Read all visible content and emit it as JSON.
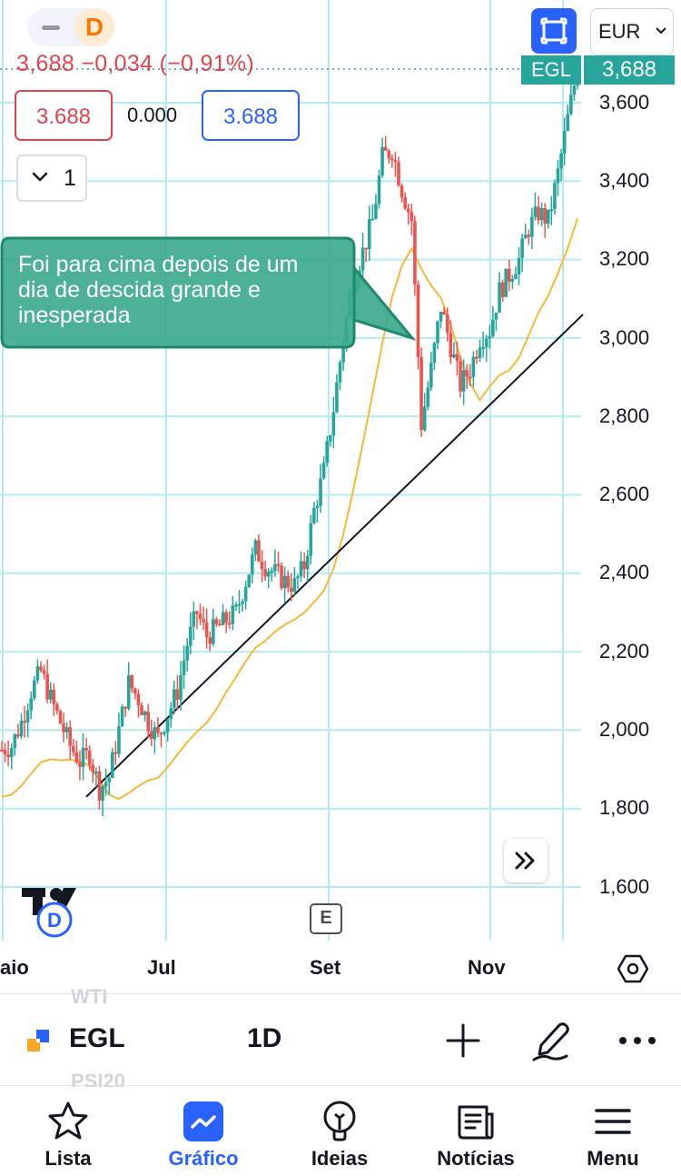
{
  "header": {
    "interval_badge": "D",
    "quote_line": "3,688 −0,034 (−0,91%)",
    "sell_price": "3.688",
    "spread": "0.000",
    "buy_price": "3.688",
    "indicators_count": "1",
    "currency": "EUR"
  },
  "price_scale": {
    "symbol_tag": "EGL",
    "last_price_tag": "3,688",
    "ticks": [
      "3,600",
      "3,400",
      "3,200",
      "3,000",
      "2,800",
      "2,600",
      "2,400",
      "2,200",
      "2,000",
      "1,800",
      "1,600"
    ]
  },
  "time_scale": {
    "ticks": [
      "aio",
      "Jul",
      "Set",
      "Nov"
    ]
  },
  "annotation": {
    "text": "Foi para cima depois de um dia de descida grande e inesperada"
  },
  "events": {
    "earnings_label": "E"
  },
  "symbol_bar": {
    "symbol": "EGL",
    "interval": "1D",
    "ghost_above": "WTI",
    "ghost_below": "PSI20"
  },
  "nav": {
    "items": [
      {
        "label": "Lista",
        "icon": "star-icon"
      },
      {
        "label": "Gráfico",
        "icon": "chart-icon"
      },
      {
        "label": "Ideias",
        "icon": "lightbulb-icon"
      },
      {
        "label": "Notícias",
        "icon": "news-icon"
      },
      {
        "label": "Menu",
        "icon": "hamburger-icon"
      }
    ],
    "active": "Gráfico"
  },
  "colors": {
    "up": "#26a69a",
    "down": "#ef5350",
    "moving_average": "#f5b93a",
    "accent": "#2962ff"
  },
  "chart_data": {
    "type": "candlestick",
    "symbol": "EGL",
    "currency": "EUR",
    "interval": "1D",
    "x_ticks": [
      "aio",
      "Jul",
      "Set",
      "Nov"
    ],
    "y_ticks": [
      3600,
      3400,
      3200,
      3000,
      2800,
      2600,
      2400,
      2200,
      2000,
      1800,
      1600
    ],
    "y_range": [
      1500,
      3800
    ],
    "last_price": 3.688,
    "price_series": [
      1.95,
      1.96,
      2.02,
      2.1,
      2.15,
      2.08,
      2.02,
      1.96,
      1.92,
      1.94,
      1.85,
      1.88,
      2.0,
      2.12,
      2.08,
      2.02,
      1.98,
      2.04,
      2.1,
      2.22,
      2.3,
      2.24,
      2.26,
      2.28,
      2.3,
      2.38,
      2.46,
      2.42,
      2.4,
      2.38,
      2.37,
      2.42,
      2.56,
      2.66,
      2.82,
      3.0,
      3.15,
      3.22,
      3.3,
      3.46,
      3.48,
      3.38,
      3.3,
      2.78,
      2.92,
      3.08,
      2.98,
      2.88,
      2.92,
      3.0,
      3.02,
      3.12,
      3.16,
      3.2,
      3.28,
      3.32,
      3.3,
      3.42,
      3.56,
      3.688
    ],
    "moving_average": "yellow line rising from ~1.7 to ~3.2",
    "trendline": "black line from ~1.83 (late Jun) to ~3.06 (early Dec)"
  }
}
